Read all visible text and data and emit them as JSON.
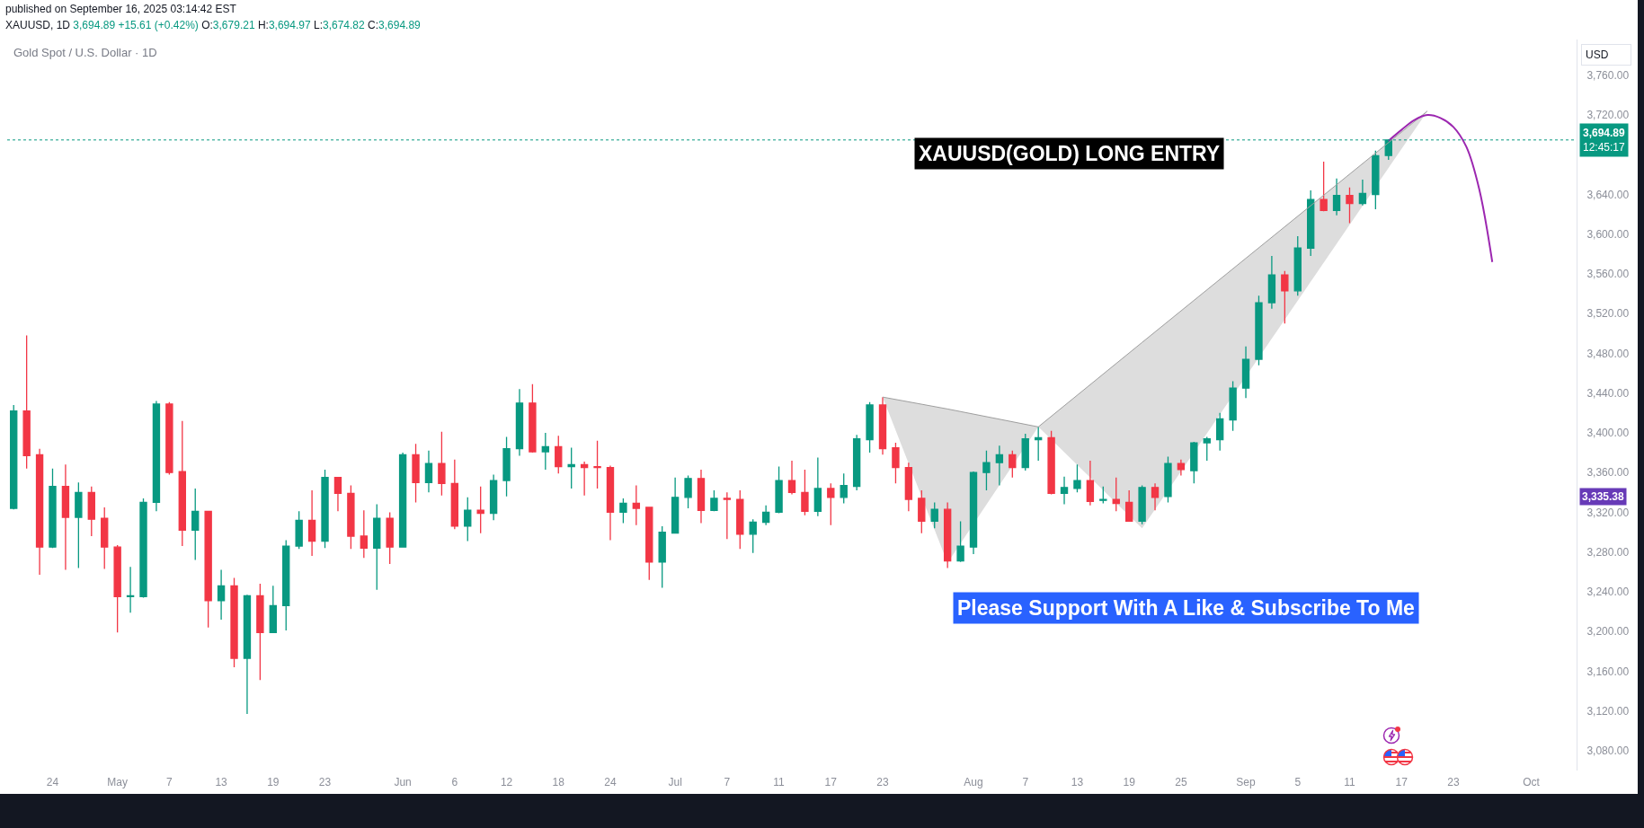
{
  "chart_data": {
    "type": "candlestick",
    "title": "Gold Spot / U.S. Dollar · 1D",
    "ylabel": "USD",
    "annotations": [
      "published on September 16, 2025 03:14:42 EST",
      "XAUUSD, 1D 3,694.89 +15.61 (+0.42%) O:3,679.21 H:3,694.97 L:3,674.82 C:3,694.89",
      "XAUUSD(GOLD) LONG ENTRY",
      "Please Support With A Like & Subscribe To Me",
      "3,335.38"
    ],
    "categories": [
      null,
      null,
      null,
      "24",
      null,
      null,
      null,
      null,
      "May",
      null,
      null,
      null,
      "7",
      null,
      null,
      null,
      "13",
      null,
      null,
      null,
      "19",
      null,
      null,
      null,
      "23",
      null,
      null,
      null,
      null,
      null,
      "Jun",
      null,
      null,
      null,
      "6",
      null,
      null,
      null,
      "12",
      null,
      null,
      null,
      "18",
      null,
      null,
      null,
      "24",
      null,
      null,
      null,
      null,
      "Jul",
      null,
      null,
      null,
      "7",
      null,
      null,
      null,
      "11",
      null,
      null,
      null,
      "17",
      null,
      null,
      null,
      "23",
      null,
      null,
      null,
      null,
      null,
      null,
      "Aug",
      null,
      null,
      null,
      "7",
      null,
      null,
      null,
      "13",
      null,
      null,
      null,
      "19",
      null,
      null,
      null,
      "25",
      null,
      null,
      null,
      null,
      "Sep",
      null,
      null,
      null,
      "5",
      null,
      null,
      null,
      "11",
      null,
      null,
      null,
      "17",
      null,
      null,
      null,
      "23",
      null,
      null,
      null,
      null,
      null,
      "Oct",
      null,
      null,
      null
    ],
    "ohlc": [
      [
        3324,
        3428,
        3323,
        3422
      ],
      [
        3422,
        3498,
        3364,
        3377
      ],
      [
        3378,
        3384,
        3257,
        3285
      ],
      [
        3285,
        3364,
        3284,
        3346
      ],
      [
        3346,
        3368,
        3262,
        3315
      ],
      [
        3315,
        3350,
        3264,
        3340
      ],
      [
        3340,
        3346,
        3296,
        3313
      ],
      [
        3314,
        3325,
        3263,
        3285
      ],
      [
        3285,
        3287,
        3199,
        3235
      ],
      [
        3235,
        3265,
        3219,
        3236
      ],
      [
        3235,
        3334,
        3234,
        3330
      ],
      [
        3330,
        3432,
        3321,
        3429
      ],
      [
        3429,
        3431,
        3358,
        3360
      ],
      [
        3361,
        3412,
        3286,
        3302
      ],
      [
        3302,
        3344,
        3272,
        3321
      ],
      [
        3321,
        3321,
        3204,
        3231
      ],
      [
        3231,
        3262,
        3212,
        3246
      ],
      [
        3246,
        3254,
        3164,
        3173
      ],
      [
        3173,
        3237,
        3117,
        3236
      ],
      [
        3236,
        3248,
        3151,
        3199
      ],
      [
        3199,
        3246,
        3199,
        3226
      ],
      [
        3226,
        3292,
        3201,
        3286
      ],
      [
        3286,
        3321,
        3283,
        3312
      ],
      [
        3312,
        3342,
        3276,
        3291
      ],
      [
        3291,
        3363,
        3284,
        3355
      ],
      [
        3355,
        3355,
        3321,
        3339
      ],
      [
        3339,
        3347,
        3283,
        3296
      ],
      [
        3296,
        3322,
        3274,
        3284
      ],
      [
        3284,
        3328,
        3242,
        3314
      ],
      [
        3314,
        3320,
        3268,
        3285
      ],
      [
        3285,
        3380,
        3285,
        3378
      ],
      [
        3378,
        3389,
        3330,
        3350
      ],
      [
        3350,
        3382,
        3340,
        3369
      ],
      [
        3369,
        3401,
        3337,
        3349
      ],
      [
        3349,
        3373,
        3303,
        3306
      ],
      [
        3306,
        3335,
        3291,
        3322
      ],
      [
        3322,
        3346,
        3299,
        3319
      ],
      [
        3319,
        3358,
        3312,
        3352
      ],
      [
        3352,
        3396,
        3336,
        3384
      ],
      [
        3384,
        3444,
        3377,
        3430
      ],
      [
        3430,
        3449,
        3380,
        3381
      ],
      [
        3381,
        3400,
        3363,
        3386
      ],
      [
        3386,
        3397,
        3359,
        3366
      ],
      [
        3366,
        3385,
        3344,
        3368
      ],
      [
        3368,
        3371,
        3337,
        3365
      ],
      [
        3366,
        3392,
        3344,
        3365
      ],
      [
        3365,
        3367,
        3292,
        3320
      ],
      [
        3320,
        3334,
        3309,
        3329
      ],
      [
        3329,
        3347,
        3307,
        3324
      ],
      [
        3325,
        3325,
        3252,
        3270
      ],
      [
        3270,
        3306,
        3244,
        3300
      ],
      [
        3299,
        3355,
        3299,
        3335
      ],
      [
        3335,
        3357,
        3324,
        3354
      ],
      [
        3354,
        3363,
        3309,
        3322
      ],
      [
        3322,
        3342,
        3321,
        3334
      ],
      [
        3334,
        3340,
        3293,
        3333
      ],
      [
        3333,
        3342,
        3283,
        3298
      ],
      [
        3298,
        3313,
        3279,
        3310
      ],
      [
        3310,
        3327,
        3307,
        3320
      ],
      [
        3320,
        3366,
        3319,
        3352
      ],
      [
        3352,
        3372,
        3338,
        3340
      ],
      [
        3340,
        3363,
        3317,
        3321
      ],
      [
        3321,
        3375,
        3316,
        3344
      ],
      [
        3344,
        3349,
        3307,
        3335
      ],
      [
        3335,
        3359,
        3329,
        3347
      ],
      [
        3346,
        3398,
        3342,
        3394
      ],
      [
        3393,
        3431,
        3380,
        3428
      ],
      [
        3428,
        3436,
        3378,
        3384
      ],
      [
        3385,
        3390,
        3349,
        3365
      ],
      [
        3365,
        3370,
        3321,
        3333
      ],
      [
        3334,
        3342,
        3299,
        3311
      ],
      [
        3311,
        3330,
        3304,
        3323
      ],
      [
        3323,
        3330,
        3264,
        3271
      ],
      [
        3271,
        3311,
        3270,
        3286
      ],
      [
        3285,
        3361,
        3278,
        3360
      ],
      [
        3360,
        3382,
        3342,
        3370
      ],
      [
        3370,
        3387,
        3347,
        3378
      ],
      [
        3378,
        3382,
        3355,
        3365
      ],
      [
        3365,
        3399,
        3362,
        3394
      ],
      [
        3393,
        3406,
        3372,
        3395
      ],
      [
        3395,
        3402,
        3338,
        3339
      ],
      [
        3339,
        3356,
        3328,
        3345
      ],
      [
        3344,
        3368,
        3340,
        3352
      ],
      [
        3352,
        3372,
        3327,
        3331
      ],
      [
        3332,
        3346,
        3329,
        3333
      ],
      [
        3333,
        3355,
        3321,
        3329
      ],
      [
        3330,
        3342,
        3311,
        3311
      ],
      [
        3311,
        3347,
        3308,
        3345
      ],
      [
        3345,
        3349,
        3322,
        3335
      ],
      [
        3336,
        3376,
        3330,
        3369
      ],
      [
        3369,
        3373,
        3357,
        3363
      ],
      [
        3362,
        3391,
        3349,
        3390
      ],
      [
        3390,
        3396,
        3372,
        3394
      ],
      [
        3393,
        3420,
        3382,
        3414
      ],
      [
        3413,
        3452,
        3402,
        3445
      ],
      [
        3445,
        3487,
        3435,
        3474
      ],
      [
        3474,
        3538,
        3468,
        3531
      ],
      [
        3531,
        3578,
        3525,
        3559
      ],
      [
        3559,
        3563,
        3510,
        3543
      ],
      [
        3543,
        3598,
        3538,
        3586
      ],
      [
        3586,
        3644,
        3578,
        3635
      ],
      [
        3635,
        3673,
        3623,
        3624
      ],
      [
        3624,
        3656,
        3619,
        3639
      ],
      [
        3639,
        3647,
        3611,
        3631
      ],
      [
        3631,
        3655,
        3629,
        3641
      ],
      [
        3640,
        3684,
        3625,
        3679
      ],
      [
        3679.21,
        3694.97,
        3674.82,
        3694.89
      ],
      null,
      null,
      null,
      null,
      null,
      null,
      null,
      null,
      null,
      null,
      null,
      null,
      null,
      null
    ],
    "colors": [
      "#089981",
      "#f23645",
      "#f23645",
      "#089981",
      "#f23645",
      "#089981",
      "#f23645",
      "#f23645",
      "#f23645",
      "#089981",
      "#089981",
      "#089981",
      "#f23645",
      "#f23645",
      "#089981",
      "#f23645",
      "#089981",
      "#f23645",
      "#089981",
      "#f23645",
      "#089981",
      "#089981",
      "#089981",
      "#f23645",
      "#089981",
      "#f23645",
      "#f23645",
      "#f23645",
      "#089981",
      "#f23645",
      "#089981",
      "#f23645",
      "#089981",
      "#f23645",
      "#f23645",
      "#089981",
      "#f23645",
      "#089981",
      "#089981",
      "#089981",
      "#f23645",
      "#089981",
      "#f23645",
      "#089981",
      "#f23645",
      "#f23645",
      "#f23645",
      "#089981",
      "#f23645",
      "#f23645",
      "#089981",
      "#089981",
      "#089981",
      "#f23645",
      "#089981",
      "#f23645",
      "#f23645",
      "#089981",
      "#089981",
      "#089981",
      "#f23645",
      "#f23645",
      "#089981",
      "#f23645",
      "#089981",
      "#089981",
      "#089981",
      "#f23645",
      "#f23645",
      "#f23645",
      "#f23645",
      "#089981",
      "#f23645",
      "#089981",
      "#089981",
      "#089981",
      "#089981",
      "#f23645",
      "#089981",
      "#089981",
      "#f23645",
      "#089981",
      "#089981",
      "#f23645",
      "#089981",
      "#f23645",
      "#f23645",
      "#089981",
      "#f23645",
      "#089981",
      "#f23645",
      "#089981",
      "#089981",
      "#089981",
      "#089981",
      "#089981",
      "#089981",
      "#089981",
      "#f23645",
      "#089981",
      "#089981",
      "#f23645",
      "#089981",
      "#f23645",
      "#089981",
      "#089981",
      "#089981",
      null,
      null,
      null,
      null,
      null,
      null,
      null,
      null,
      null,
      null,
      null,
      null,
      null,
      null
    ],
    "series": [
      {
        "type": "line",
        "color": "#9e9e9e",
        "values": [
          null,
          null,
          null,
          null,
          null,
          null,
          null,
          null,
          null,
          null,
          null,
          null,
          null,
          null,
          null,
          null,
          null,
          null,
          null,
          null,
          null,
          null,
          null,
          null,
          null,
          null,
          null,
          null,
          null,
          null,
          null,
          null,
          null,
          null,
          null,
          null,
          null,
          null,
          null,
          null,
          null,
          null,
          null,
          null,
          null,
          null,
          null,
          null,
          null,
          null,
          null,
          null,
          null,
          null,
          null,
          null,
          null,
          null,
          null,
          null,
          null,
          null,
          null,
          null,
          null,
          null,
          null,
          3436,
          null,
          null,
          null,
          null,
          3424,
          null,
          null,
          null,
          null,
          null,
          null,
          3406,
          null,
          null,
          null,
          null,
          null,
          null,
          null,
          null,
          null,
          null,
          null,
          null,
          null,
          null,
          null,
          null,
          null,
          null,
          null,
          null,
          null,
          null,
          null,
          null,
          null,
          null,
          null,
          null,
          null,
          null,
          null,
          null,
          null,
          null,
          null,
          null,
          null,
          null,
          null,
          null,
          null
        ],
        "lower": [
          null,
          null,
          null,
          null,
          null,
          null,
          null,
          null,
          null,
          null,
          null,
          null,
          null,
          null,
          null,
          null,
          null,
          null,
          null,
          null,
          null,
          null,
          null,
          null,
          null,
          null,
          null,
          null,
          null,
          null,
          null,
          null,
          null,
          null,
          null,
          null,
          null,
          null,
          null,
          null,
          null,
          null,
          null,
          null,
          null,
          null,
          null,
          null,
          null,
          null,
          null,
          null,
          null,
          null,
          null,
          null,
          null,
          null,
          null,
          null,
          null,
          null,
          null,
          null,
          null,
          null,
          null,
          3436,
          null,
          null,
          null,
          null,
          3269,
          null,
          null,
          null,
          null,
          null,
          null,
          3406,
          null,
          null,
          null,
          null,
          null,
          null,
          null,
          null,
          null,
          null,
          null,
          null,
          null,
          null,
          null,
          null,
          null,
          null,
          null,
          null,
          null,
          null,
          null,
          null,
          null,
          null,
          null,
          null,
          null,
          null,
          null,
          null,
          null,
          null,
          null,
          null,
          null,
          null,
          null,
          null,
          null
        ],
        "upper": [
          null,
          null,
          null,
          null,
          null,
          null,
          null,
          null,
          null,
          null,
          null,
          null,
          null,
          null,
          null,
          null,
          null,
          null,
          null,
          null,
          null,
          null,
          null,
          null,
          null,
          null,
          null,
          null,
          null,
          null,
          null,
          null,
          null,
          null,
          null,
          null,
          null,
          null,
          null,
          null,
          null,
          null,
          null,
          null,
          null,
          null,
          null,
          null,
          null,
          null,
          null,
          null,
          null,
          null,
          null,
          null,
          null,
          null,
          null,
          null,
          null,
          null,
          null,
          null,
          null,
          null,
          null,
          3436,
          null,
          null,
          null,
          null,
          3424,
          null,
          null,
          null,
          null,
          null,
          null,
          3406,
          null,
          null,
          null,
          null,
          null,
          null,
          null,
          null,
          null,
          null,
          null,
          null,
          null,
          null,
          null,
          null,
          null,
          null,
          null,
          null,
          null,
          null,
          null,
          null,
          null,
          null,
          null,
          null,
          null,
          null,
          null,
          null,
          null,
          null,
          null,
          null,
          null,
          null,
          null,
          null,
          null
        ]
      },
      {
        "type": "line",
        "color": "#9e9e9e",
        "values": [
          null,
          null,
          null,
          null,
          null,
          null,
          null,
          null,
          null,
          null,
          null,
          null,
          null,
          null,
          null,
          null,
          null,
          null,
          null,
          null,
          null,
          null,
          null,
          null,
          null,
          null,
          null,
          null,
          null,
          null,
          null,
          null,
          null,
          null,
          null,
          null,
          null,
          null,
          null,
          null,
          null,
          null,
          null,
          null,
          null,
          null,
          null,
          null,
          null,
          null,
          null,
          null,
          null,
          null,
          null,
          null,
          null,
          null,
          null,
          null,
          null,
          null,
          null,
          null,
          null,
          null,
          null,
          null,
          null,
          null,
          null,
          null,
          null,
          null,
          null,
          null,
          null,
          null,
          null,
          3406,
          null,
          null,
          null,
          null,
          null,
          null,
          null,
          3491,
          null,
          null,
          null,
          null,
          null,
          null,
          null,
          null,
          null,
          null,
          null,
          null,
          null,
          null,
          null,
          null,
          null,
          null,
          null,
          null,
          null,
          3724,
          null,
          null,
          null,
          null,
          null,
          null,
          null,
          null,
          null,
          null,
          null
        ],
        "lower": [
          null,
          null,
          null,
          null,
          null,
          null,
          null,
          null,
          null,
          null,
          null,
          null,
          null,
          null,
          null,
          null,
          null,
          null,
          null,
          null,
          null,
          null,
          null,
          null,
          null,
          null,
          null,
          null,
          null,
          null,
          null,
          null,
          null,
          null,
          null,
          null,
          null,
          null,
          null,
          null,
          null,
          null,
          null,
          null,
          null,
          null,
          null,
          null,
          null,
          null,
          null,
          null,
          null,
          null,
          null,
          null,
          null,
          null,
          null,
          null,
          null,
          null,
          null,
          null,
          null,
          null,
          null,
          null,
          null,
          null,
          null,
          null,
          null,
          null,
          null,
          null,
          null,
          null,
          null,
          3406,
          null,
          null,
          null,
          null,
          null,
          null,
          null,
          3304,
          null,
          null,
          null,
          null,
          null,
          null,
          null,
          null,
          null,
          null,
          null,
          null,
          null,
          null,
          null,
          null,
          null,
          null,
          null,
          null,
          null,
          3724,
          null,
          null,
          null,
          null,
          null,
          null,
          null,
          null,
          null,
          null,
          null
        ],
        "upper": [
          null,
          null,
          null,
          null,
          null,
          null,
          null,
          null,
          null,
          null,
          null,
          null,
          null,
          null,
          null,
          null,
          null,
          null,
          null,
          null,
          null,
          null,
          null,
          null,
          null,
          null,
          null,
          null,
          null,
          null,
          null,
          null,
          null,
          null,
          null,
          null,
          null,
          null,
          null,
          null,
          null,
          null,
          null,
          null,
          null,
          null,
          null,
          null,
          null,
          null,
          null,
          null,
          null,
          null,
          null,
          null,
          null,
          null,
          null,
          null,
          null,
          null,
          null,
          null,
          null,
          null,
          null,
          null,
          null,
          null,
          null,
          null,
          null,
          null,
          null,
          null,
          null,
          null,
          null,
          3406,
          null,
          null,
          null,
          null,
          null,
          null,
          null,
          3491,
          null,
          null,
          null,
          null,
          null,
          null,
          null,
          null,
          null,
          null,
          null,
          null,
          null,
          null,
          null,
          null,
          null,
          null,
          null,
          null,
          null,
          3724,
          null,
          null,
          null,
          null,
          null,
          null,
          null,
          null,
          null,
          null,
          null
        ]
      },
      {
        "type": "line",
        "color": "#9c27b0",
        "values": [
          null,
          null,
          null,
          null,
          null,
          null,
          null,
          null,
          null,
          null,
          null,
          null,
          null,
          null,
          null,
          null,
          null,
          null,
          null,
          null,
          null,
          null,
          null,
          null,
          null,
          null,
          null,
          null,
          null,
          null,
          null,
          null,
          null,
          null,
          null,
          null,
          null,
          null,
          null,
          null,
          null,
          null,
          null,
          null,
          null,
          null,
          null,
          null,
          null,
          null,
          null,
          null,
          null,
          null,
          null,
          null,
          null,
          null,
          null,
          null,
          null,
          null,
          null,
          null,
          null,
          null,
          null,
          null,
          null,
          null,
          null,
          null,
          null,
          null,
          null,
          null,
          null,
          null,
          null,
          null,
          null,
          null,
          null,
          null,
          null,
          null,
          null,
          null,
          null,
          null,
          null,
          null,
          null,
          null,
          null,
          null,
          null,
          null,
          null,
          null,
          null,
          null,
          null,
          null,
          null,
          null,
          3694,
          3705,
          3715,
          3720,
          3717,
          3708,
          3688,
          3645,
          3572,
          null,
          null,
          null,
          null,
          null,
          null
        ]
      }
    ],
    "ref_lines": [
      {
        "axis": "y",
        "value": 3694.89,
        "label": "3,694.89\n12:45:17",
        "color": "#089981",
        "line_style": "dotted"
      }
    ],
    "ylim": [
      3060,
      3796
    ],
    "yticks": [
      {
        "value": 3080,
        "label": "3,080.00"
      },
      {
        "value": 3120,
        "label": "3,120.00"
      },
      {
        "value": 3160,
        "label": "3,160.00"
      },
      {
        "value": 3200,
        "label": "3,200.00"
      },
      {
        "value": 3240,
        "label": "3,240.00"
      },
      {
        "value": 3280,
        "label": "3,280.00"
      },
      {
        "value": 3320,
        "label": "3,320.00"
      },
      {
        "value": 3360,
        "label": "3,360.00"
      },
      {
        "value": 3400,
        "label": "3,400.00"
      },
      {
        "value": 3440,
        "label": "3,440.00"
      },
      {
        "value": 3480,
        "label": "3,480.00"
      },
      {
        "value": 3520,
        "label": "3,520.00"
      },
      {
        "value": 3560,
        "label": "3,560.00"
      },
      {
        "value": 3600,
        "label": "3,600.00"
      },
      {
        "value": 3640,
        "label": "3,640.00"
      },
      {
        "value": 3720,
        "label": "3,720.00"
      },
      {
        "value": 3760,
        "label": "3,760.00"
      }
    ]
  }
}
